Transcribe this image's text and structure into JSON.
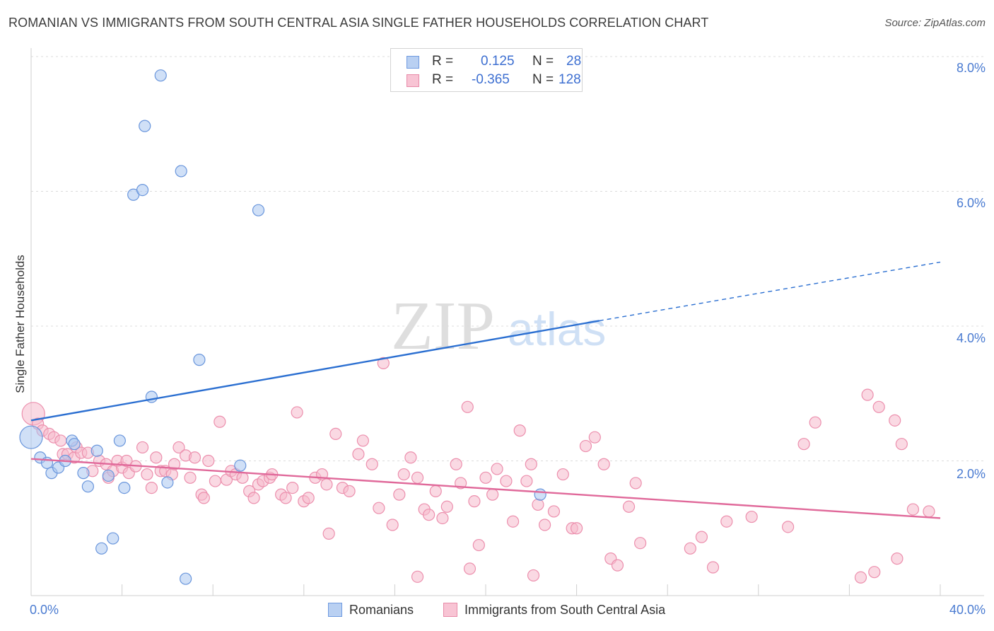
{
  "title": "ROMANIAN VS IMMIGRANTS FROM SOUTH CENTRAL ASIA SINGLE FATHER HOUSEHOLDS CORRELATION CHART",
  "source": "Source: ZipAtlas.com",
  "watermark": {
    "zip": "ZIP",
    "atlas": "atlas"
  },
  "legend": {
    "rows": [
      {
        "r_label": "R =",
        "r_value": "0.125",
        "n_label": "N =",
        "n_value": "28",
        "color": "#b9d0f2",
        "border": "#6f9ae0"
      },
      {
        "r_label": "R =",
        "r_value": "-0.365",
        "n_label": "N =",
        "n_value": "128",
        "color": "#f8c4d4",
        "border": "#e88aa8"
      }
    ]
  },
  "chart_data": {
    "type": "scatter",
    "title": "ROMANIAN VS IMMIGRANTS FROM SOUTH CENTRAL ASIA SINGLE FATHER HOUSEHOLDS CORRELATION CHART",
    "xlabel": "",
    "ylabel": "Single Father Households",
    "xlim": [
      0,
      40
    ],
    "ylim": [
      0,
      8.0
    ],
    "x_tick_labels": [
      "0.0%",
      "40.0%"
    ],
    "y_ticks": [
      2,
      4,
      6,
      8
    ],
    "y_tick_labels": [
      "2.0%",
      "4.0%",
      "6.0%",
      "8.0%"
    ],
    "grid": true,
    "series": [
      {
        "name": "Romanians",
        "color": "#a9c6f0",
        "stroke": "#6a96dc",
        "line_color": "#2b6fd1",
        "trend": {
          "x0": 0,
          "y0": 2.6,
          "x1": 25,
          "y1": 4.08,
          "dash_to_x": 40,
          "dash_to_y": 4.95
        },
        "points": [
          [
            0.0,
            2.35
          ],
          [
            0.4,
            2.05
          ],
          [
            0.7,
            1.97
          ],
          [
            0.9,
            1.82
          ],
          [
            1.2,
            1.9
          ],
          [
            1.5,
            2.0
          ],
          [
            1.8,
            2.3
          ],
          [
            1.9,
            2.25
          ],
          [
            2.3,
            1.82
          ],
          [
            2.5,
            1.62
          ],
          [
            2.9,
            2.15
          ],
          [
            3.1,
            0.7
          ],
          [
            3.4,
            1.78
          ],
          [
            3.6,
            0.85
          ],
          [
            3.9,
            2.3
          ],
          [
            4.1,
            1.6
          ],
          [
            4.5,
            5.95
          ],
          [
            4.9,
            6.02
          ],
          [
            5.0,
            6.97
          ],
          [
            5.3,
            2.95
          ],
          [
            5.7,
            7.72
          ],
          [
            6.0,
            1.68
          ],
          [
            6.6,
            6.3
          ],
          [
            6.8,
            0.25
          ],
          [
            7.4,
            3.5
          ],
          [
            9.2,
            1.93
          ],
          [
            10.0,
            5.72
          ],
          [
            22.4,
            1.5
          ]
        ]
      },
      {
        "name": "Immigrants from South Central Asia",
        "color": "#f6b9cc",
        "stroke": "#ec8fad",
        "line_color": "#e0699a",
        "trend": {
          "x0": 0,
          "y0": 2.03,
          "x1": 40,
          "y1": 1.15
        },
        "points": [
          [
            0.1,
            2.7
          ],
          [
            0.3,
            2.55
          ],
          [
            0.5,
            2.45
          ],
          [
            0.8,
            2.4
          ],
          [
            1.0,
            2.35
          ],
          [
            1.3,
            2.3
          ],
          [
            1.4,
            2.1
          ],
          [
            1.6,
            2.1
          ],
          [
            1.9,
            2.05
          ],
          [
            2.0,
            2.2
          ],
          [
            2.2,
            2.12
          ],
          [
            2.5,
            2.12
          ],
          [
            2.7,
            1.85
          ],
          [
            3.0,
            2.0
          ],
          [
            3.3,
            1.95
          ],
          [
            3.4,
            1.75
          ],
          [
            3.6,
            1.85
          ],
          [
            3.8,
            2.0
          ],
          [
            4.0,
            1.9
          ],
          [
            4.2,
            2.0
          ],
          [
            4.3,
            1.82
          ],
          [
            4.6,
            1.92
          ],
          [
            4.9,
            2.2
          ],
          [
            5.1,
            1.8
          ],
          [
            5.3,
            1.6
          ],
          [
            5.5,
            2.05
          ],
          [
            5.7,
            1.85
          ],
          [
            5.9,
            1.85
          ],
          [
            6.2,
            1.8
          ],
          [
            6.3,
            1.95
          ],
          [
            6.5,
            2.2
          ],
          [
            6.8,
            2.08
          ],
          [
            7.0,
            1.75
          ],
          [
            7.2,
            2.05
          ],
          [
            7.5,
            1.5
          ],
          [
            7.6,
            1.45
          ],
          [
            7.8,
            2.0
          ],
          [
            8.1,
            1.7
          ],
          [
            8.3,
            2.58
          ],
          [
            8.6,
            1.72
          ],
          [
            8.8,
            1.85
          ],
          [
            9.0,
            1.8
          ],
          [
            9.3,
            1.75
          ],
          [
            9.6,
            1.55
          ],
          [
            9.8,
            1.45
          ],
          [
            10.0,
            1.65
          ],
          [
            10.2,
            1.7
          ],
          [
            10.5,
            1.75
          ],
          [
            10.6,
            1.8
          ],
          [
            11.0,
            1.5
          ],
          [
            11.2,
            1.45
          ],
          [
            11.5,
            1.6
          ],
          [
            11.7,
            2.72
          ],
          [
            12.0,
            1.4
          ],
          [
            12.2,
            1.45
          ],
          [
            12.5,
            1.75
          ],
          [
            12.8,
            1.8
          ],
          [
            13.0,
            1.65
          ],
          [
            13.4,
            2.4
          ],
          [
            13.7,
            1.6
          ],
          [
            14.0,
            1.55
          ],
          [
            14.4,
            2.1
          ],
          [
            14.6,
            2.3
          ],
          [
            15.0,
            1.95
          ],
          [
            15.3,
            1.3
          ],
          [
            15.5,
            3.45
          ],
          [
            15.9,
            1.05
          ],
          [
            16.2,
            1.5
          ],
          [
            16.4,
            1.8
          ],
          [
            16.7,
            2.05
          ],
          [
            17.0,
            1.75
          ],
          [
            17.3,
            1.28
          ],
          [
            17.5,
            1.2
          ],
          [
            17.8,
            1.55
          ],
          [
            18.1,
            1.15
          ],
          [
            18.3,
            1.32
          ],
          [
            18.7,
            1.95
          ],
          [
            18.9,
            1.67
          ],
          [
            19.2,
            2.8
          ],
          [
            19.5,
            1.4
          ],
          [
            19.7,
            0.75
          ],
          [
            20.0,
            1.75
          ],
          [
            20.3,
            1.5
          ],
          [
            20.5,
            1.88
          ],
          [
            20.9,
            1.7
          ],
          [
            21.2,
            1.1
          ],
          [
            21.5,
            2.45
          ],
          [
            21.8,
            1.7
          ],
          [
            22.0,
            1.95
          ],
          [
            22.3,
            1.35
          ],
          [
            22.6,
            1.05
          ],
          [
            23.0,
            1.25
          ],
          [
            23.4,
            1.8
          ],
          [
            23.8,
            1.0
          ],
          [
            24.0,
            1.0
          ],
          [
            24.4,
            2.22
          ],
          [
            24.8,
            2.35
          ],
          [
            25.2,
            1.95
          ],
          [
            25.5,
            0.55
          ],
          [
            25.8,
            0.45
          ],
          [
            26.3,
            1.32
          ],
          [
            26.6,
            1.67
          ],
          [
            26.8,
            0.78
          ],
          [
            13.1,
            0.92
          ],
          [
            17.0,
            0.28
          ],
          [
            19.3,
            0.4
          ],
          [
            22.1,
            0.3
          ],
          [
            29.0,
            0.7
          ],
          [
            29.5,
            0.87
          ],
          [
            30.0,
            0.42
          ],
          [
            30.6,
            1.1
          ],
          [
            31.7,
            1.17
          ],
          [
            33.3,
            1.02
          ],
          [
            34.0,
            2.25
          ],
          [
            34.5,
            2.57
          ],
          [
            36.5,
            0.27
          ],
          [
            36.8,
            2.98
          ],
          [
            37.1,
            0.35
          ],
          [
            37.3,
            2.8
          ],
          [
            38.0,
            2.6
          ],
          [
            38.1,
            0.55
          ],
          [
            38.3,
            2.25
          ],
          [
            38.8,
            1.28
          ],
          [
            39.5,
            1.25
          ]
        ]
      }
    ]
  }
}
